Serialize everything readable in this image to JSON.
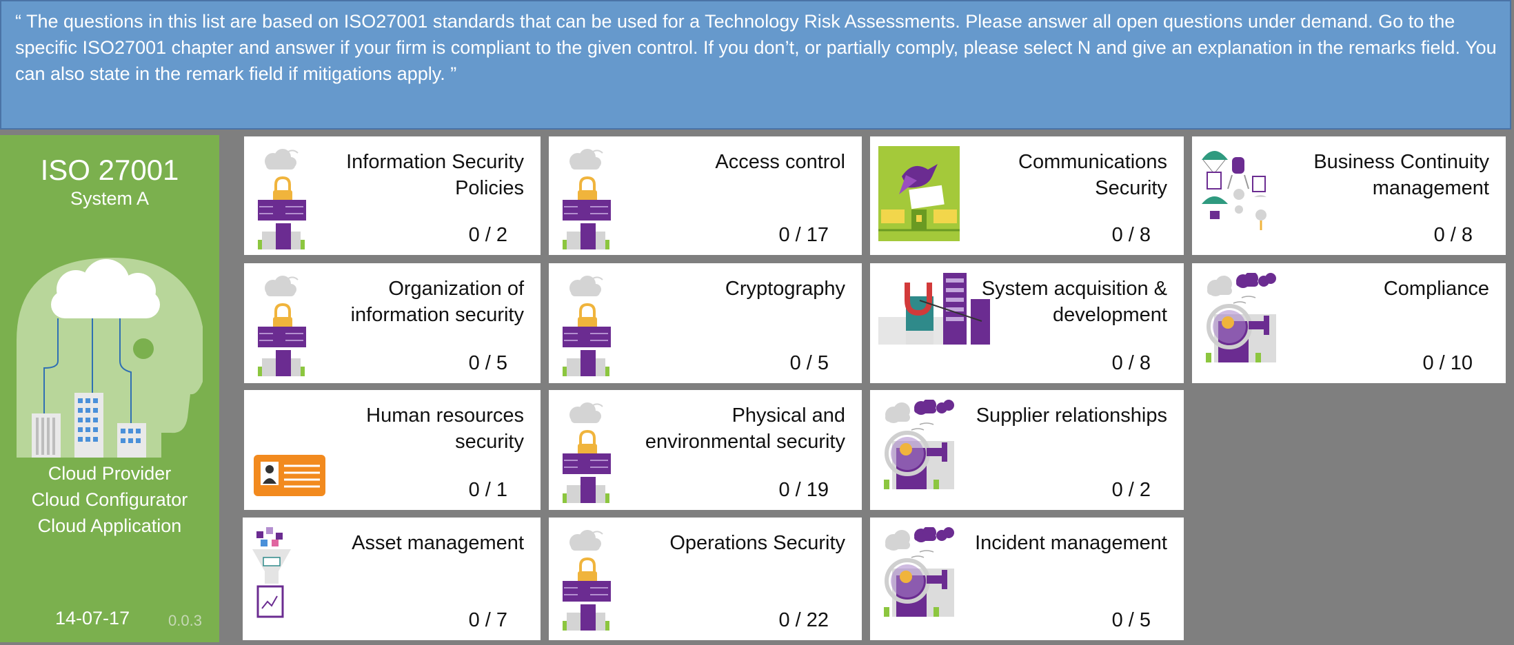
{
  "banner": {
    "text": "“ The questions in this list are based on ISO27001 standards that can be used for a Technology Risk Assessments. Please answer all open questions under demand. Go to the specific ISO27001 chapter and answer if your firm is compliant to the given control. If you don’t,  or partially comply, please select N and give an explanation in the remarks field. You can also state in the remark field if mitigations apply. ”"
  },
  "side": {
    "title": "ISO 27001",
    "subtitle": "System A",
    "roles": [
      "Cloud Provider",
      "Cloud Configurator",
      "Cloud Application"
    ],
    "date": "14-07-17",
    "version": "0.0.3"
  },
  "tiles": [
    {
      "name": "Information Security Policies",
      "lines": [
        "Information Security",
        "Policies"
      ],
      "count": "0 / 2",
      "icon": "lock-building-icon"
    },
    {
      "name": "Access control",
      "lines": [
        "Access control"
      ],
      "count": "0 / 17",
      "icon": "lock-building-icon"
    },
    {
      "name": "Communications Security",
      "lines": [
        "Communications",
        "Security"
      ],
      "count": "0 / 8",
      "icon": "bird-envelope-icon"
    },
    {
      "name": "Business Continuity management",
      "lines": [
        "Business Continuity",
        "management"
      ],
      "count": "0 / 8",
      "icon": "parachute-icon"
    },
    {
      "name": "Organization of information security",
      "lines": [
        "Organization of",
        "information security"
      ],
      "count": "0 / 5",
      "icon": "lock-building-icon"
    },
    {
      "name": "Cryptography",
      "lines": [
        "Cryptography"
      ],
      "count": "0 / 5",
      "icon": "lock-building-icon"
    },
    {
      "name": "System acquisition & development",
      "lines": [
        "System acquisition &",
        "development"
      ],
      "count": "0 / 8",
      "icon": "server-magnet-icon"
    },
    {
      "name": "Compliance",
      "lines": [
        "Compliance"
      ],
      "count": "0 / 10",
      "icon": "magnifier-building-icon"
    },
    {
      "name": "Human resources security",
      "lines": [
        "Human resources",
        "security"
      ],
      "count": "0 / 1",
      "icon": "id-card-icon"
    },
    {
      "name": "Physical and environmental security",
      "lines": [
        "Physical and",
        "environmental security"
      ],
      "count": "0 / 19",
      "icon": "lock-building-icon"
    },
    {
      "name": "Supplier relationships",
      "lines": [
        "Supplier relationships"
      ],
      "count": "0 / 2",
      "icon": "magnifier-building-icon"
    },
    {
      "name": "Asset management",
      "lines": [
        "Asset management"
      ],
      "count": "0 / 7",
      "icon": "funnel-document-icon"
    },
    {
      "name": "Operations Security",
      "lines": [
        "Operations Security"
      ],
      "count": "0 / 22",
      "icon": "lock-building-icon"
    },
    {
      "name": "Incident management",
      "lines": [
        "Incident management"
      ],
      "count": "0 / 5",
      "icon": "magnifier-building-icon"
    }
  ],
  "colors": {
    "banner": "#6699cc",
    "sidebar": "#7bb04e",
    "background": "#7f7f7f",
    "icon_purple": "#6b2c91",
    "icon_orange": "#f28a1e",
    "icon_lime": "#a4c93a"
  }
}
